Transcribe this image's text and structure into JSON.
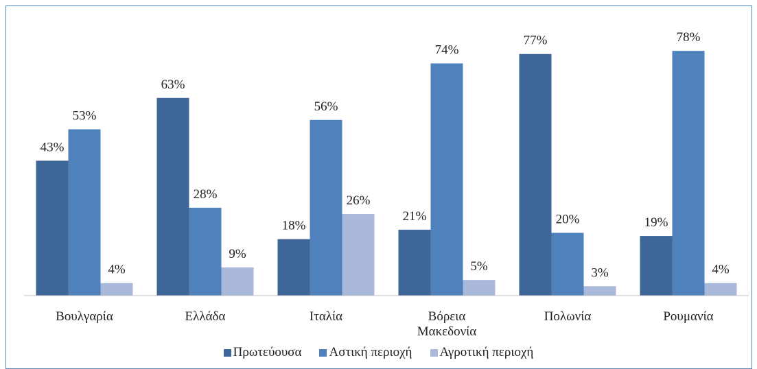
{
  "chart_data": {
    "type": "bar",
    "categories": [
      "Βουλγαρία",
      "Ελλάδα",
      "Ιταλία",
      "Βόρεια Μακεδονία",
      "Πολωνία",
      "Ρουμανία"
    ],
    "series": [
      {
        "name": "Πρωτεύουσα",
        "color": "#3f6699",
        "values": [
          43,
          63,
          18,
          21,
          77,
          19
        ],
        "value_labels": [
          "43%",
          "63%",
          "18%",
          "21%",
          "77%",
          "19%"
        ]
      },
      {
        "name": "Αστική περιοχή",
        "color": "#4f81bd",
        "values": [
          53,
          28,
          56,
          74,
          20,
          78
        ],
        "value_labels": [
          "53%",
          "28%",
          "56%",
          "74%",
          "20%",
          "78%"
        ]
      },
      {
        "name": "Αγροτική περιοχή",
        "color": "#aab9db",
        "values": [
          4,
          9,
          26,
          5,
          3,
          4
        ],
        "value_labels": [
          "4%",
          "9%",
          "26%",
          "5%",
          "3%",
          "4%"
        ]
      }
    ],
    "ylim": [
      0,
      80
    ],
    "legend": "bottom"
  }
}
